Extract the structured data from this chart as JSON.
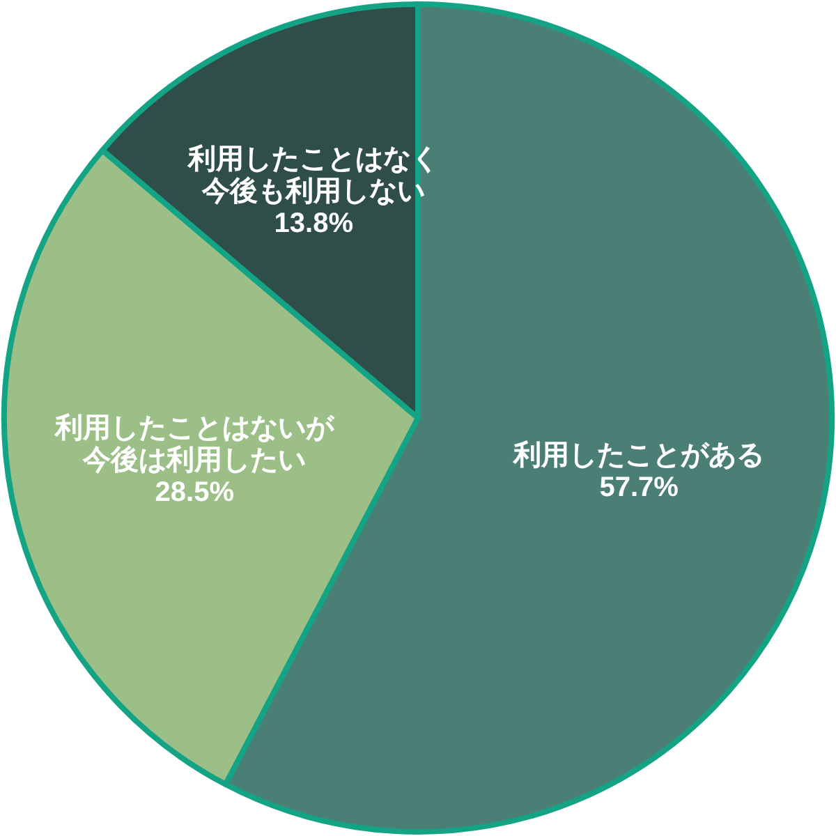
{
  "chart_data": {
    "type": "pie",
    "categories": [
      "利用したことがある",
      "利用したことはないが今後は利用したい",
      "利用したことはなく今後も利用しない"
    ],
    "values": [
      57.7,
      28.5,
      13.8
    ],
    "colors": [
      "#4b7f76",
      "#9bbf87",
      "#2f4e49"
    ],
    "value_labels": [
      "57.7%",
      "28.5%",
      "13.8%"
    ]
  }
}
